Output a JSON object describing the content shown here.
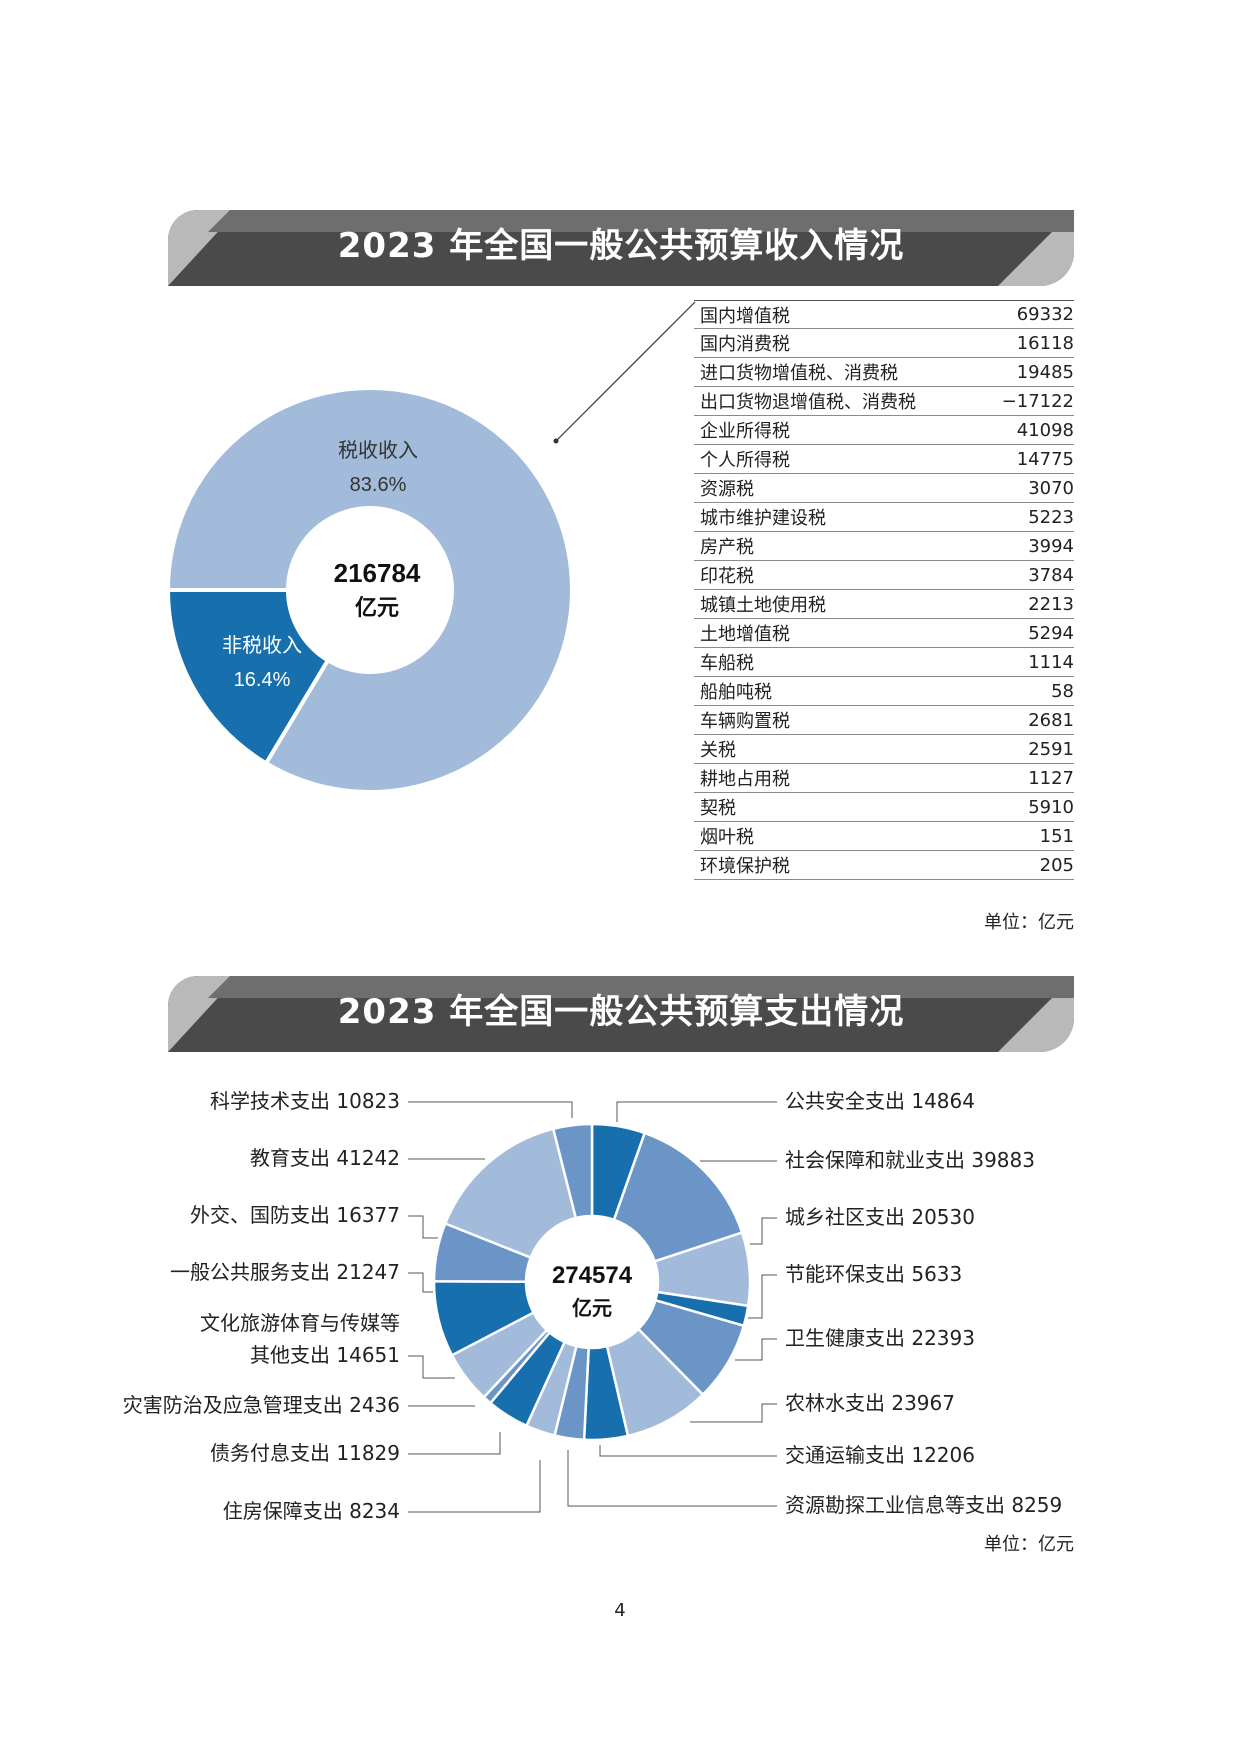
{
  "income": {
    "title": "2023 年全国一般公共预算收入情况",
    "total_value": "216784",
    "total_unit": "亿元",
    "unit_label": "单位：亿元",
    "table_rows": [
      {
        "label": "国内增值税",
        "value": "69332"
      },
      {
        "label": "国内消费税",
        "value": "16118"
      },
      {
        "label": "进口货物增值税、消费税",
        "value": "19485"
      },
      {
        "label": "出口货物退增值税、消费税",
        "value": "−17122"
      },
      {
        "label": "企业所得税",
        "value": "41098"
      },
      {
        "label": "个人所得税",
        "value": "14775"
      },
      {
        "label": "资源税",
        "value": "3070"
      },
      {
        "label": "城市维护建设税",
        "value": "5223"
      },
      {
        "label": "房产税",
        "value": "3994"
      },
      {
        "label": "印花税",
        "value": "3784"
      },
      {
        "label": "城镇土地使用税",
        "value": "2213"
      },
      {
        "label": "土地增值税",
        "value": "5294"
      },
      {
        "label": "车船税",
        "value": "1114"
      },
      {
        "label": "船舶吨税",
        "value": "58"
      },
      {
        "label": "车辆购置税",
        "value": "2681"
      },
      {
        "label": "关税",
        "value": "2591"
      },
      {
        "label": "耕地占用税",
        "value": "1127"
      },
      {
        "label": "契税",
        "value": "5910"
      },
      {
        "label": "烟叶税",
        "value": "151"
      },
      {
        "label": "环境保护税",
        "value": "205"
      }
    ]
  },
  "expense": {
    "title": "2023 年全国一般公共预算支出情况",
    "total_value": "274574",
    "total_unit": "亿元",
    "unit_label": "单位：亿元"
  },
  "page_number": "4",
  "colors": {
    "banner_dark": "#4a4a4a",
    "banner_light": "#b9b9b9",
    "light_blue": "#a3bbdb",
    "mid_blue": "#6a95c6",
    "dark_blue": "#1770ad"
  },
  "chart_data": [
    {
      "type": "pie",
      "donut": true,
      "center_label": [
        "216784",
        "亿元"
      ],
      "slices": [
        {
          "name": "税收收入",
          "percent_label": "83.6%",
          "value": 83.6,
          "color": "#a3bbdb"
        },
        {
          "name": "非税收入",
          "percent_label": "16.4%",
          "value": 16.4,
          "color": "#1770ad"
        }
      ]
    },
    {
      "type": "pie",
      "donut": true,
      "center_label": [
        "274574",
        "亿元"
      ],
      "slices": [
        {
          "name": "公共安全支出",
          "value": 14864,
          "color": "#1770ad"
        },
        {
          "name": "社会保障和就业支出",
          "value": 39883,
          "color": "#6a95c6"
        },
        {
          "name": "城乡社区支出",
          "value": 20530,
          "color": "#a3bbdb"
        },
        {
          "name": "节能环保支出",
          "value": 5633,
          "color": "#1770ad"
        },
        {
          "name": "卫生健康支出",
          "value": 22393,
          "color": "#6a95c6"
        },
        {
          "name": "农林水支出",
          "value": 23967,
          "color": "#a3bbdb"
        },
        {
          "name": "交通运输支出",
          "value": 12206,
          "color": "#1770ad"
        },
        {
          "name": "资源勘探工业信息等支出",
          "value": 8259,
          "color": "#6a95c6"
        },
        {
          "name": "住房保障支出",
          "value": 8234,
          "color": "#a3bbdb"
        },
        {
          "name": "债务付息支出",
          "value": 11829,
          "color": "#1770ad"
        },
        {
          "name": "灾害防治及应急管理支出",
          "value": 2436,
          "color": "#6a95c6"
        },
        {
          "name": "其他支出",
          "value": 14651,
          "color": "#a3bbdb"
        },
        {
          "name": "一般公共服务支出",
          "value": 21247,
          "color": "#1770ad"
        },
        {
          "name": "外交、国防支出",
          "value": 16377,
          "color": "#6a95c6"
        },
        {
          "name": "教育支出",
          "value": 41242,
          "color": "#a3bbdb"
        },
        {
          "name": "科学技术支出",
          "value": 10823,
          "color": "#6a95c6"
        }
      ],
      "labels": [
        {
          "text": "科学技术支出 10823",
          "side": "left"
        },
        {
          "text": "教育支出 41242",
          "side": "left"
        },
        {
          "text": "外交、国防支出 16377",
          "side": "left"
        },
        {
          "text": "一般公共服务支出 21247",
          "side": "left"
        },
        {
          "text": "文化旅游体育与传媒等",
          "side": "left"
        },
        {
          "text": "其他支出 14651",
          "side": "left"
        },
        {
          "text": "灾害防治及应急管理支出 2436",
          "side": "left"
        },
        {
          "text": "债务付息支出 11829",
          "side": "left"
        },
        {
          "text": "住房保障支出 8234",
          "side": "left"
        },
        {
          "text": "公共安全支出 14864",
          "side": "right"
        },
        {
          "text": "社会保障和就业支出 39883",
          "side": "right"
        },
        {
          "text": "城乡社区支出 20530",
          "side": "right"
        },
        {
          "text": "节能环保支出 5633",
          "side": "right"
        },
        {
          "text": "卫生健康支出 22393",
          "side": "right"
        },
        {
          "text": "农林水支出 23967",
          "side": "right"
        },
        {
          "text": "交通运输支出 12206",
          "side": "right"
        },
        {
          "text": "资源勘探工业信息等支出 8259",
          "side": "right"
        }
      ]
    }
  ]
}
